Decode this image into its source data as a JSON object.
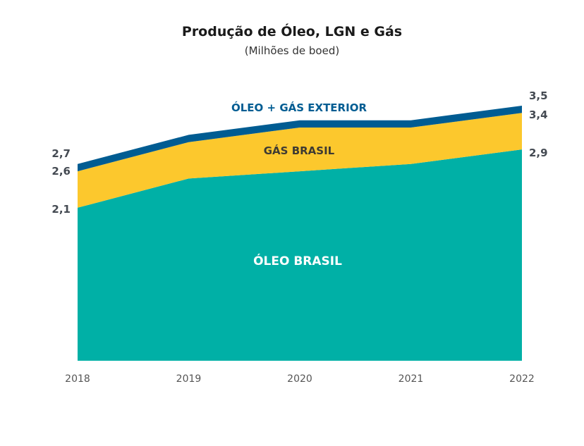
{
  "chart_data": {
    "type": "area",
    "stacked": true,
    "title": "Produção de Óleo, LGN e Gás",
    "subtitle": "(Milhões de boed)",
    "x": [
      "2018",
      "2019",
      "2020",
      "2021",
      "2022"
    ],
    "series": [
      {
        "name": "ÓLEO BRASIL",
        "values": [
          2.1,
          2.5,
          2.6,
          2.7,
          2.9
        ],
        "color": "#00b0a6"
      },
      {
        "name": "GÁS BRASIL",
        "values": [
          0.5,
          0.5,
          0.6,
          0.5,
          0.5
        ],
        "color": "#fcc82d"
      },
      {
        "name": "ÓLEO + GÁS EXTERIOR",
        "values": [
          0.1,
          0.1,
          0.1,
          0.1,
          0.1
        ],
        "color": "#005c92"
      }
    ],
    "ylim": [
      0,
      3.5
    ],
    "grid": false,
    "legend": "none",
    "data_labels": {
      "start": [
        "2,7",
        "2,6",
        "2,1"
      ],
      "end": [
        "3,5",
        "3,4",
        "2,9"
      ]
    }
  }
}
